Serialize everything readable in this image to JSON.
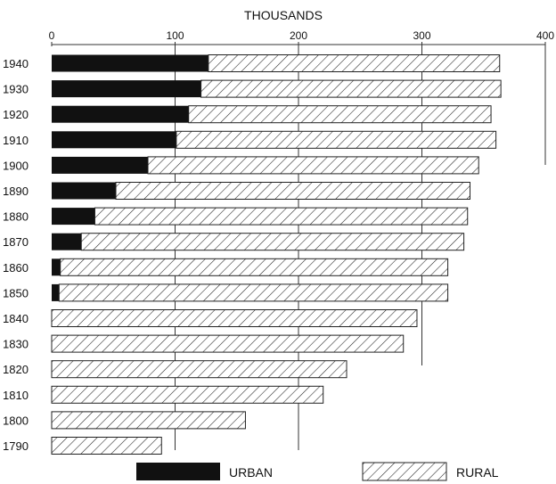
{
  "chart_data": {
    "type": "bar",
    "stacked": true,
    "orientation": "horizontal",
    "title": "THOUSANDS",
    "xlim": [
      0,
      400
    ],
    "x_ticks": [
      0,
      100,
      200,
      300,
      400
    ],
    "grid": true,
    "legend_placement": "bottom",
    "categories": [
      "1940",
      "1930",
      "1920",
      "1910",
      "1900",
      "1890",
      "1880",
      "1870",
      "1860",
      "1850",
      "1840",
      "1830",
      "1820",
      "1810",
      "1800",
      "1790"
    ],
    "series": [
      {
        "name": "URBAN",
        "color": "#111111",
        "pattern": "solid",
        "values": [
          127,
          121,
          111,
          101,
          78,
          52,
          35,
          24,
          7,
          6,
          0,
          0,
          0,
          0,
          0,
          0
        ]
      },
      {
        "name": "RURAL",
        "color": "#ffffff",
        "pattern": "diagonal-hatch",
        "values": [
          236,
          243,
          245,
          259,
          268,
          287,
          302,
          310,
          314,
          315,
          296,
          285,
          239,
          220,
          157,
          89
        ]
      }
    ]
  }
}
